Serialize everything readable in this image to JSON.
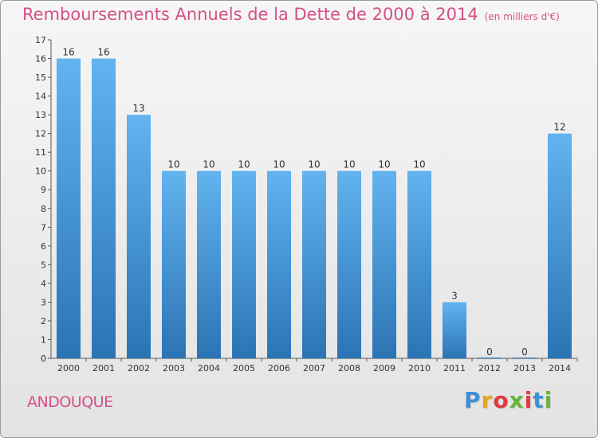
{
  "header": {
    "title": "Remboursements Annuels de la Dette de 2000 à 2014",
    "subtitle": "(en milliers d'€)"
  },
  "footer": {
    "commune": "ANDOUQUE",
    "logo_text": "Proxiti"
  },
  "colors": {
    "title": "#d64f86",
    "bar_light": "#62b3ef",
    "bar_dark": "#2b74b4"
  },
  "chart_data": {
    "type": "bar",
    "categories": [
      "2000",
      "2001",
      "2002",
      "2003",
      "2004",
      "2005",
      "2006",
      "2007",
      "2008",
      "2009",
      "2010",
      "2011",
      "2012",
      "2013",
      "2014"
    ],
    "values": [
      16,
      16,
      13,
      10,
      10,
      10,
      10,
      10,
      10,
      10,
      10,
      3,
      0,
      0,
      12
    ],
    "title": "Remboursements Annuels de la Dette de 2000 à 2014",
    "subtitle": "(en milliers d'€)",
    "ylim": [
      0,
      17
    ],
    "yticks": [
      "0",
      "1",
      "2",
      "3",
      "4",
      "5",
      "6",
      "7",
      "8",
      "9",
      "10",
      "11",
      "12",
      "13",
      "14",
      "15",
      "16",
      "17"
    ],
    "grid": false,
    "data_labels": true
  }
}
